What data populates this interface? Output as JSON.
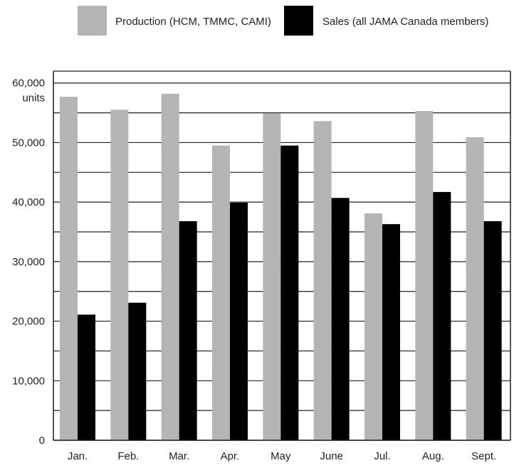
{
  "chart_data": {
    "type": "bar",
    "title": "",
    "xlabel": "",
    "ylabel": "",
    "y_unit_label": "units",
    "ylim": [
      0,
      62000
    ],
    "grid": "horizontal",
    "legend_position": "top",
    "y_ticks": [
      {
        "value": 0,
        "label": "0"
      },
      {
        "value": 10000,
        "label": "10,000"
      },
      {
        "value": 20000,
        "label": "20,000"
      },
      {
        "value": 30000,
        "label": "30,000"
      },
      {
        "value": 40000,
        "label": "40,000"
      },
      {
        "value": 50000,
        "label": "50,000"
      },
      {
        "value": 60000,
        "label": "60,000"
      }
    ],
    "minor_gridlines": [
      5000,
      15000,
      25000,
      35000,
      45000,
      55000
    ],
    "categories": [
      "Jan.",
      "Feb.",
      "Mar.",
      "Apr.",
      "May",
      "June",
      "Jul.",
      "Aug.",
      "Sept."
    ],
    "series": [
      {
        "name": "Production (HCM, TMMC, CAMI)",
        "color": "#b4b4b5",
        "values": [
          57700,
          55500,
          58200,
          49500,
          54900,
          53600,
          38100,
          55300,
          50900
        ]
      },
      {
        "name": "Sales (all JAMA Canada members)",
        "color": "#000000",
        "values": [
          21100,
          23100,
          36800,
          39900,
          49500,
          40700,
          36300,
          41700,
          36800
        ]
      }
    ]
  }
}
